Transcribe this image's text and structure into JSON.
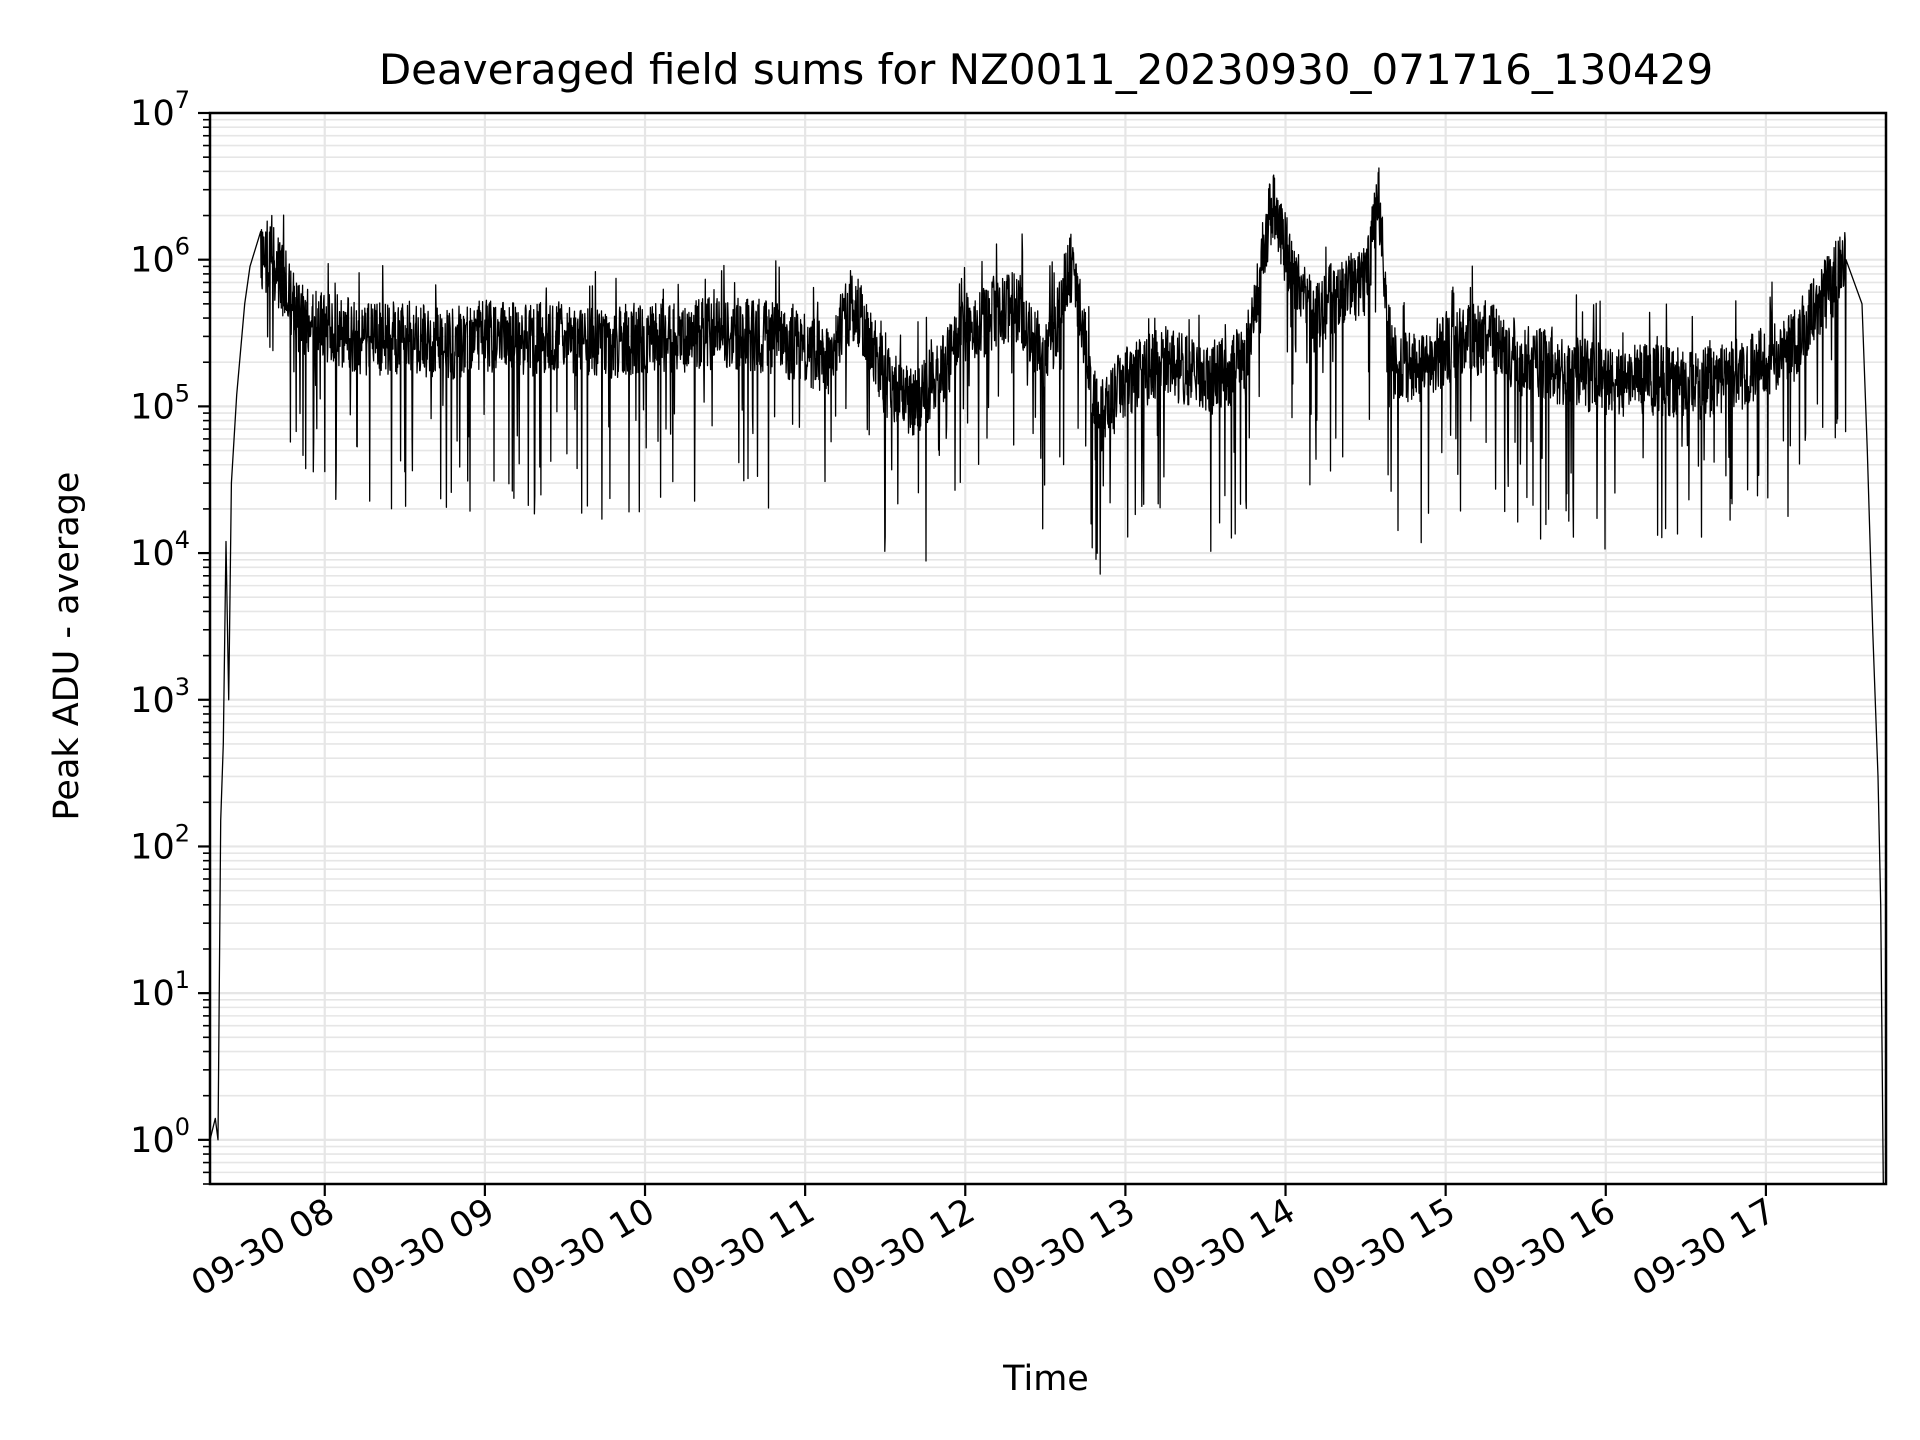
{
  "chart_data": {
    "type": "line",
    "title": "Deaveraged field sums for NZ0011_20230930_071716_130429",
    "xlabel": "Time",
    "ylabel": "Peak ADU - average",
    "x_type": "datetime",
    "xlim": [
      "2023-09-30 07:17",
      "2023-09-30 17:45"
    ],
    "ylim": [
      0.5,
      10000000
    ],
    "y_scale": "log",
    "grid": true,
    "x_ticks": [
      {
        "t": "2023-09-30 08:00",
        "label": "09-30 08"
      },
      {
        "t": "2023-09-30 09:00",
        "label": "09-30 09"
      },
      {
        "t": "2023-09-30 10:00",
        "label": "09-30 10"
      },
      {
        "t": "2023-09-30 11:00",
        "label": "09-30 11"
      },
      {
        "t": "2023-09-30 12:00",
        "label": "09-30 12"
      },
      {
        "t": "2023-09-30 13:00",
        "label": "09-30 13"
      },
      {
        "t": "2023-09-30 14:00",
        "label": "09-30 14"
      },
      {
        "t": "2023-09-30 15:00",
        "label": "09-30 15"
      },
      {
        "t": "2023-09-30 16:00",
        "label": "09-30 16"
      },
      {
        "t": "2023-09-30 17:00",
        "label": "09-30 17"
      }
    ],
    "y_ticks": [
      {
        "value": 1,
        "base": "10",
        "exp": "0"
      },
      {
        "value": 10,
        "base": "10",
        "exp": "1"
      },
      {
        "value": 100,
        "base": "10",
        "exp": "2"
      },
      {
        "value": 1000,
        "base": "10",
        "exp": "3"
      },
      {
        "value": 10000,
        "base": "10",
        "exp": "4"
      },
      {
        "value": 100000,
        "base": "10",
        "exp": "5"
      },
      {
        "value": 1000000,
        "base": "10",
        "exp": "6"
      },
      {
        "value": 10000000,
        "base": "10",
        "exp": "7"
      }
    ],
    "line_color": "#000000",
    "grid_color": "#e6e6e6",
    "series": [
      {
        "points": [
          [
            "2023-09-30 07:17",
            1.0
          ],
          [
            "2023-09-30 07:19",
            1.4
          ],
          [
            "2023-09-30 07:20",
            1.0
          ],
          [
            "2023-09-30 07:21",
            150
          ],
          [
            "2023-09-30 07:22",
            500
          ],
          [
            "2023-09-30 07:23",
            12000
          ],
          [
            "2023-09-30 07:24",
            1000
          ],
          [
            "2023-09-30 07:25",
            30000
          ],
          [
            "2023-09-30 07:27",
            120000
          ],
          [
            "2023-09-30 07:30",
            500000
          ],
          [
            "2023-09-30 07:32",
            900000
          ],
          [
            "2023-09-30 07:36",
            1100000
          ],
          [
            "2023-09-30 07:40",
            1000000
          ],
          [
            "2023-09-30 07:45",
            700000
          ],
          [
            "2023-09-30 07:50",
            400000
          ],
          [
            "2023-09-30 08:00",
            350000
          ],
          [
            "2023-09-30 08:15",
            280000
          ],
          [
            "2023-09-30 08:30",
            300000
          ],
          [
            "2023-09-30 08:45",
            260000
          ],
          [
            "2023-09-30 09:00",
            300000
          ],
          [
            "2023-09-30 09:15",
            280000
          ],
          [
            "2023-09-30 09:30",
            300000
          ],
          [
            "2023-09-30 09:45",
            260000
          ],
          [
            "2023-09-30 10:00",
            300000
          ],
          [
            "2023-09-30 10:15",
            300000
          ],
          [
            "2023-09-30 10:30",
            320000
          ],
          [
            "2023-09-30 10:45",
            300000
          ],
          [
            "2023-09-30 11:00",
            250000
          ],
          [
            "2023-09-30 11:10",
            200000
          ],
          [
            "2023-09-30 11:15",
            420000
          ],
          [
            "2023-09-30 11:20",
            450000
          ],
          [
            "2023-09-30 11:30",
            150000
          ],
          [
            "2023-09-30 11:40",
            100000
          ],
          [
            "2023-09-30 11:50",
            150000
          ],
          [
            "2023-09-30 12:00",
            350000
          ],
          [
            "2023-09-30 12:10",
            400000
          ],
          [
            "2023-09-30 12:20",
            500000
          ],
          [
            "2023-09-30 12:30",
            200000
          ],
          [
            "2023-09-30 12:40",
            900000
          ],
          [
            "2023-09-30 12:50",
            80000
          ],
          [
            "2023-09-30 13:00",
            150000
          ],
          [
            "2023-09-30 13:15",
            200000
          ],
          [
            "2023-09-30 13:30",
            150000
          ],
          [
            "2023-09-30 13:45",
            200000
          ],
          [
            "2023-09-30 13:55",
            2500000
          ],
          [
            "2023-09-30 14:00",
            1200000
          ],
          [
            "2023-09-30 14:10",
            400000
          ],
          [
            "2023-09-30 14:20",
            600000
          ],
          [
            "2023-09-30 14:30",
            700000
          ],
          [
            "2023-09-30 14:35",
            2500000
          ],
          [
            "2023-09-30 14:40",
            200000
          ],
          [
            "2023-09-30 14:50",
            180000
          ],
          [
            "2023-09-30 15:00",
            250000
          ],
          [
            "2023-09-30 15:15",
            300000
          ],
          [
            "2023-09-30 15:30",
            200000
          ],
          [
            "2023-09-30 15:45",
            180000
          ],
          [
            "2023-09-30 16:00",
            150000
          ],
          [
            "2023-09-30 16:15",
            150000
          ],
          [
            "2023-09-30 16:30",
            140000
          ],
          [
            "2023-09-30 16:45",
            150000
          ],
          [
            "2023-09-30 17:00",
            200000
          ],
          [
            "2023-09-30 17:10",
            250000
          ],
          [
            "2023-09-30 17:20",
            500000
          ],
          [
            "2023-09-30 17:30",
            1000000
          ],
          [
            "2023-09-30 17:36",
            500000
          ],
          [
            "2023-09-30 17:38",
            50000
          ],
          [
            "2023-09-30 17:40",
            3000
          ],
          [
            "2023-09-30 17:42",
            300
          ],
          [
            "2023-09-30 17:43",
            40
          ],
          [
            "2023-09-30 17:44",
            0.5
          ]
        ]
      }
    ]
  }
}
